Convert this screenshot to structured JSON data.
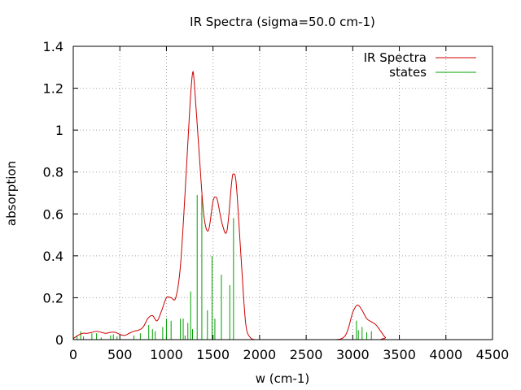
{
  "chart_data": {
    "type": "line",
    "title": "IR Spectra (sigma=50.0 cm-1)",
    "xlabel": "w (cm-1)",
    "ylabel": "absorption",
    "xlim": [
      0,
      4500
    ],
    "ylim": [
      0,
      1.4
    ],
    "xticks": [
      "0",
      "500",
      "1000",
      "1500",
      "2000",
      "2500",
      "3000",
      "3500",
      "4000",
      "4500"
    ],
    "xtick_values": [
      0,
      500,
      1000,
      1500,
      2000,
      2500,
      3000,
      3500,
      4000,
      4500
    ],
    "yticks": [
      "0",
      "0.2",
      "0.4",
      "0.6",
      "0.8",
      "1",
      "1.2",
      "1.4"
    ],
    "ytick_values": [
      0,
      0.2,
      0.4,
      0.6,
      0.8,
      1.0,
      1.2,
      1.4
    ],
    "grid": true,
    "legend_position": "top-right",
    "series": [
      {
        "name": "IR Spectra",
        "kind": "line",
        "color": "#cc0000",
        "x": [
          0,
          50,
          100,
          150,
          200,
          250,
          300,
          350,
          400,
          450,
          500,
          550,
          600,
          650,
          700,
          750,
          800,
          850,
          900,
          950,
          1000,
          1050,
          1100,
          1150,
          1200,
          1250,
          1280,
          1300,
          1350,
          1400,
          1450,
          1500,
          1530,
          1550,
          1600,
          1650,
          1700,
          1720,
          1750,
          1800,
          1850,
          1900,
          1950,
          2000,
          2500,
          2800,
          2900,
          2950,
          3000,
          3050,
          3100,
          3150,
          3200,
          3250,
          3300,
          3350,
          3400,
          4500
        ],
        "y": [
          0.005,
          0.02,
          0.03,
          0.03,
          0.035,
          0.04,
          0.035,
          0.03,
          0.035,
          0.035,
          0.025,
          0.02,
          0.03,
          0.04,
          0.045,
          0.06,
          0.1,
          0.115,
          0.09,
          0.14,
          0.2,
          0.2,
          0.2,
          0.35,
          0.7,
          1.1,
          1.27,
          1.22,
          0.9,
          0.6,
          0.52,
          0.66,
          0.68,
          0.66,
          0.55,
          0.52,
          0.75,
          0.79,
          0.74,
          0.4,
          0.08,
          0.01,
          0.0,
          0.0,
          0.0,
          0.0,
          0.01,
          0.05,
          0.13,
          0.165,
          0.14,
          0.1,
          0.085,
          0.07,
          0.04,
          0.01,
          0.0,
          0.0
        ]
      },
      {
        "name": "states",
        "kind": "sticks",
        "color": "#00a000",
        "x": [
          40,
          80,
          110,
          200,
          250,
          300,
          400,
          430,
          470,
          650,
          720,
          810,
          850,
          880,
          960,
          1000,
          1050,
          1150,
          1180,
          1200,
          1230,
          1260,
          1280,
          1330,
          1380,
          1440,
          1490,
          1520,
          1590,
          1680,
          1720,
          3040,
          3060,
          3100,
          3150,
          3200
        ],
        "y": [
          0.02,
          0.04,
          0.015,
          0.03,
          0.03,
          0.01,
          0.02,
          0.025,
          0.015,
          0.02,
          0.03,
          0.07,
          0.05,
          0.04,
          0.06,
          0.1,
          0.09,
          0.1,
          0.1,
          0.02,
          0.08,
          0.23,
          0.05,
          0.69,
          0.69,
          0.14,
          0.4,
          0.1,
          0.31,
          0.26,
          0.58,
          0.09,
          0.045,
          0.06,
          0.035,
          0.04
        ]
      }
    ]
  }
}
